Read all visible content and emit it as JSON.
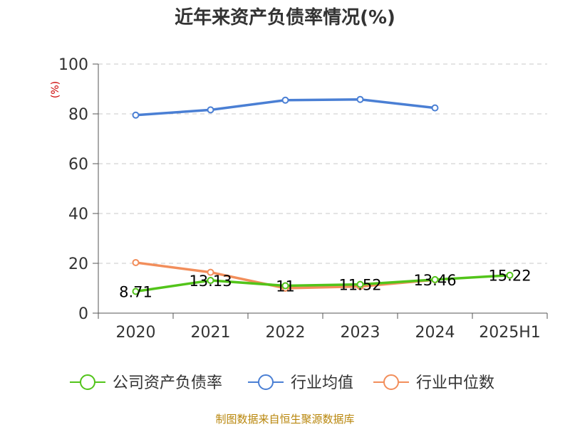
{
  "chart_data": {
    "type": "line",
    "title": "近年来资产负债率情况(%)",
    "ylabel": "(%)",
    "categories": [
      "2020",
      "2021",
      "2022",
      "2023",
      "2024",
      "2025H1"
    ],
    "ylim": [
      0,
      100
    ],
    "yticks": [
      0,
      20,
      40,
      60,
      80,
      100
    ],
    "grid": true,
    "legend_position": "bottom",
    "series": [
      {
        "name": "公司资产负债率",
        "color": "#52c41a",
        "values": [
          8.71,
          13.13,
          11,
          11.52,
          13.46,
          15.22
        ],
        "labels": [
          "8.71",
          "13.13",
          "11",
          "11.52",
          "13.46",
          "15.22"
        ]
      },
      {
        "name": "行业均值",
        "color": "#4a7fd4",
        "values": [
          79.5,
          81.6,
          85.5,
          85.8,
          82.4,
          null
        ]
      },
      {
        "name": "行业中位数",
        "color": "#f28e5b",
        "values": [
          20.3,
          16.4,
          10.0,
          10.7,
          13.4,
          null
        ]
      }
    ]
  },
  "source_note": "制图数据来自恒生聚源数据库"
}
